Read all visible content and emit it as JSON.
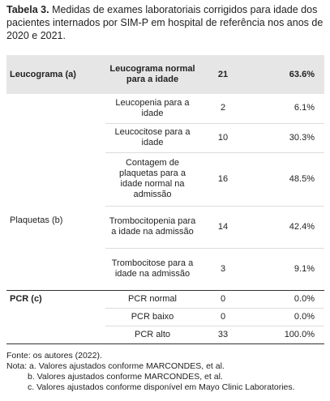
{
  "caption": {
    "label": "Tabela 3.",
    "text": "Medidas de exames laboratoriais corrigidos para idade dos pacientes internados por SIM-P em hospital de referência nos anos de 2020 e 2021."
  },
  "table": {
    "header": [
      "Leucograma (a)",
      "Leucograma normal para a idade",
      "21",
      "63.6%"
    ],
    "leucograma_rows": [
      [
        "Leucopenia para a idade",
        "2",
        "6.1%"
      ],
      [
        "Leucocitose para a idade",
        "10",
        "30.3%"
      ]
    ],
    "plaquetas": {
      "label": "Plaquetas (b)",
      "rows": [
        [
          "Contagem de plaquetas para a idade normal na admissão",
          "16",
          "48.5%"
        ],
        [
          "Trombocitopenia para a idade na admissão",
          "14",
          "42.4%"
        ],
        [
          "Trombocitose para a idade na admissão",
          "3",
          "9.1%"
        ]
      ]
    },
    "pcr": {
      "label": "PCR (c)",
      "rows": [
        [
          "PCR normal",
          "0",
          "0.0%"
        ],
        [
          "PCR baixo",
          "0",
          "0.0%"
        ],
        [
          "PCR alto",
          "33",
          "100.0%"
        ]
      ]
    }
  },
  "footer": [
    "Fonte: os autores (2022).",
    "Nota: a. Valores ajustados conforme MARCONDES, et al.",
    "b. Valores ajustados conforme MARCONDES, et al.",
    "c. Valores ajustados conforme disponível em Mayo Clinic Laboratories."
  ]
}
